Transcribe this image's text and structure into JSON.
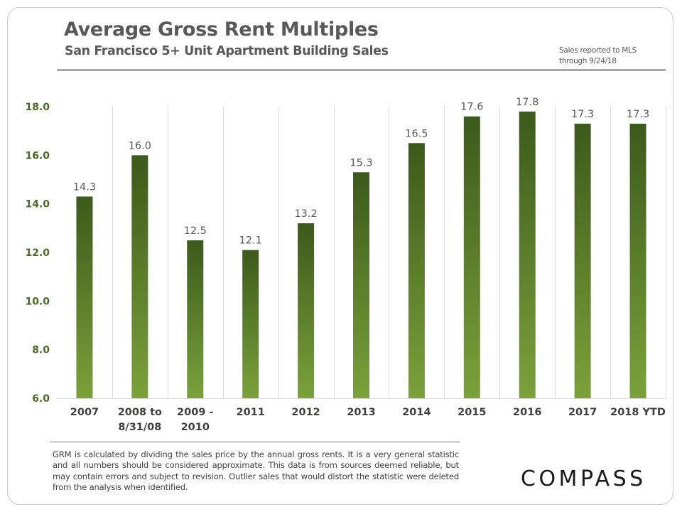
{
  "header": {
    "title": "Average Gross Rent Multiples",
    "subtitle": "San Francisco 5+ Unit Apartment Building Sales",
    "note_line1": "Sales reported to MLS",
    "note_line2": "through  9/24/18"
  },
  "footnote": "GRM is calculated by dividing the sales price by the annual gross rents. It is a very general statistic and all numbers should be considered approximate. This data is from sources deemed reliable, but may contain errors and subject to revision. Outlier sales that would distort the statistic were deleted from the analysis when identified.",
  "logo": "COMPASS",
  "colors": {
    "bar_top": "#3c5a1a",
    "bar_bottom": "#7aa23a",
    "axis_label": "#4a6b22",
    "text": "#404040",
    "grid": "#d9d9d9"
  },
  "chart_data": {
    "type": "bar",
    "title": "Average Gross Rent Multiples",
    "subtitle": "San Francisco 5+ Unit Apartment Building Sales",
    "categories": [
      [
        "2007"
      ],
      [
        "2008 to",
        "8/31/08"
      ],
      [
        "2009 -",
        "2010"
      ],
      [
        "2011"
      ],
      [
        "2012"
      ],
      [
        "2013"
      ],
      [
        "2014"
      ],
      [
        "2015"
      ],
      [
        "2016"
      ],
      [
        "2017"
      ],
      [
        "2018 YTD"
      ]
    ],
    "values": [
      14.3,
      16.0,
      12.5,
      12.1,
      13.2,
      15.3,
      16.5,
      17.6,
      17.8,
      17.3,
      17.3
    ],
    "value_labels": [
      "14.3",
      "16.0",
      "12.5",
      "12.1",
      "13.2",
      "15.3",
      "16.5",
      "17.6",
      "17.8",
      "17.3",
      "17.3"
    ],
    "y_ticks": [
      "6.0",
      "8.0",
      "10.0",
      "12.0",
      "14.0",
      "16.0",
      "18.0"
    ],
    "ylim": [
      6,
      18
    ],
    "grid": "vertical",
    "legend": "none"
  }
}
